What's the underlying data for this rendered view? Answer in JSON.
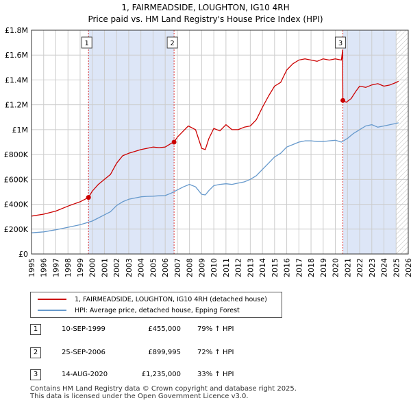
{
  "title_line1": "1, FAIRMEADSIDE, LOUGHTON, IG10 4RH",
  "title_line2": "Price paid vs. HM Land Registry's House Price Index (HPI)",
  "colors": {
    "property": "#cc0000",
    "hpi": "#6699cc",
    "shade": "#dde6f7",
    "grid": "#cccccc",
    "marker_line": "#dd3333"
  },
  "chart_data": {
    "type": "line",
    "title": "Price paid vs. HM Land Registry's House Price Index (HPI)",
    "xlabel": "",
    "ylabel": "",
    "xlim": [
      1995,
      2026
    ],
    "ylim": [
      0,
      1800000
    ],
    "y_ticks": [
      0,
      200000,
      400000,
      600000,
      800000,
      1000000,
      1200000,
      1400000,
      1600000,
      1800000
    ],
    "y_tick_labels": [
      "£0",
      "£200K",
      "£400K",
      "£600K",
      "£800K",
      "£1M",
      "£1.2M",
      "£1.4M",
      "£1.6M",
      "£1.8M"
    ],
    "x_ticks": [
      1995,
      1996,
      1997,
      1998,
      1999,
      2000,
      2001,
      2002,
      2003,
      2004,
      2005,
      2006,
      2007,
      2008,
      2009,
      2010,
      2011,
      2012,
      2013,
      2014,
      2015,
      2016,
      2017,
      2018,
      2019,
      2020,
      2021,
      2022,
      2023,
      2024,
      2025,
      2026
    ],
    "grid": true,
    "shaded_ranges": [
      [
        1999.69,
        2006.73
      ],
      [
        2020.62,
        2025.0
      ]
    ],
    "hatched_from": 2025.0,
    "series": [
      {
        "name": "1, FAIRMEADSIDE, LOUGHTON, IG10 4RH (detached house)",
        "x": [
          1995,
          1996,
          1997,
          1998,
          1999,
          1999.69,
          2000,
          2000.5,
          2001,
          2001.5,
          2002,
          2002.5,
          2003,
          2003.5,
          2004,
          2004.5,
          2005,
          2005.5,
          2006,
          2006.5,
          2006.73,
          2007,
          2007.5,
          2007.9,
          2008.5,
          2009.0,
          2009.3,
          2009.6,
          2010,
          2010.5,
          2011,
          2011.5,
          2012,
          2012.5,
          2013,
          2013.5,
          2014,
          2014.5,
          2015,
          2015.5,
          2016,
          2016.5,
          2017,
          2017.5,
          2018,
          2018.5,
          2019,
          2019.5,
          2020,
          2020.5,
          2020.6,
          2020.62,
          2020.9,
          2021.3,
          2021.7,
          2022,
          2022.5,
          2023,
          2023.5,
          2024,
          2024.5,
          2025,
          2025.2
        ],
        "values": [
          305000,
          320000,
          345000,
          385000,
          420000,
          455000,
          505000,
          560000,
          600000,
          640000,
          730000,
          790000,
          810000,
          825000,
          840000,
          850000,
          860000,
          855000,
          860000,
          890000,
          899995,
          940000,
          990000,
          1030000,
          1000000,
          850000,
          840000,
          930000,
          1010000,
          990000,
          1040000,
          1000000,
          1000000,
          1020000,
          1030000,
          1080000,
          1180000,
          1270000,
          1350000,
          1380000,
          1480000,
          1530000,
          1560000,
          1570000,
          1560000,
          1550000,
          1570000,
          1560000,
          1570000,
          1560000,
          1640000,
          1235000,
          1220000,
          1250000,
          1310000,
          1350000,
          1340000,
          1360000,
          1370000,
          1350000,
          1360000,
          1380000,
          1390000
        ]
      },
      {
        "name": "HPI: Average price, detached house, Epping Forest",
        "x": [
          1995,
          1996,
          1997,
          1998,
          1999,
          2000,
          2000.5,
          2001,
          2001.5,
          2002,
          2002.5,
          2003,
          2003.5,
          2004,
          2004.5,
          2005,
          2005.5,
          2006,
          2006.5,
          2007,
          2007.5,
          2008,
          2008.5,
          2009.0,
          2009.3,
          2009.6,
          2010,
          2010.5,
          2011,
          2011.5,
          2012,
          2012.5,
          2013,
          2013.5,
          2014,
          2014.5,
          2015,
          2015.5,
          2016,
          2016.5,
          2017,
          2017.5,
          2018,
          2018.5,
          2019,
          2019.5,
          2020,
          2020.5,
          2021,
          2021.5,
          2022,
          2022.5,
          2023,
          2023.5,
          2024,
          2024.5,
          2025,
          2025.2
        ],
        "values": [
          170000,
          178000,
          195000,
          215000,
          235000,
          265000,
          290000,
          315000,
          340000,
          390000,
          420000,
          440000,
          450000,
          460000,
          463000,
          465000,
          468000,
          470000,
          490000,
          515000,
          540000,
          560000,
          540000,
          480000,
          475000,
          510000,
          550000,
          560000,
          565000,
          560000,
          570000,
          580000,
          600000,
          630000,
          680000,
          730000,
          780000,
          810000,
          860000,
          880000,
          900000,
          910000,
          910000,
          905000,
          905000,
          910000,
          915000,
          900000,
          930000,
          970000,
          1000000,
          1030000,
          1040000,
          1020000,
          1030000,
          1040000,
          1050000,
          1055000
        ]
      }
    ],
    "sale_markers": [
      {
        "label": "1",
        "x": 1999.69,
        "value": 455000
      },
      {
        "label": "2",
        "x": 2006.73,
        "value": 899995
      },
      {
        "label": "3",
        "x": 2020.62,
        "value": 1235000
      }
    ]
  },
  "legend": {
    "property_label": "1, FAIRMEADSIDE, LOUGHTON, IG10 4RH (detached house)",
    "hpi_label": "HPI: Average price, detached house, Epping Forest"
  },
  "sales": [
    {
      "num": "1",
      "date": "10-SEP-1999",
      "price": "£455,000",
      "hpi": "79% ↑ HPI"
    },
    {
      "num": "2",
      "date": "25-SEP-2006",
      "price": "£899,995",
      "hpi": "72% ↑ HPI"
    },
    {
      "num": "3",
      "date": "14-AUG-2020",
      "price": "£1,235,000",
      "hpi": "33% ↑ HPI"
    }
  ],
  "footer": {
    "line1": "Contains HM Land Registry data © Crown copyright and database right 2025.",
    "line2": "This data is licensed under the Open Government Licence v3.0."
  }
}
